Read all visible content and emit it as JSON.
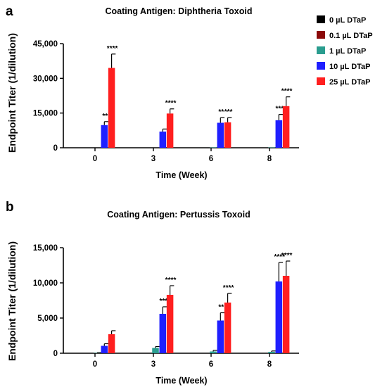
{
  "legend": [
    {
      "label": "0 µL DTaP",
      "color": "#000000"
    },
    {
      "label": "0.1 µL DTaP",
      "color": "#8b0a0a"
    },
    {
      "label": "1 µL DTaP",
      "color": "#2a9d8f"
    },
    {
      "label": "10 µL DTaP",
      "color": "#1f1fff"
    },
    {
      "label": "25 µL DTaP",
      "color": "#ff1f1f"
    }
  ],
  "chart_data": [
    {
      "panel": "a",
      "type": "bar",
      "title": "Coating Antigen: Diphtheria Toxoid",
      "xlabel": "Time (Week)",
      "ylabel": "Endpoint Titer (1/dilution)",
      "ylim": [
        0,
        45000
      ],
      "yticks": [
        0,
        15000,
        30000,
        45000
      ],
      "ytick_labels": [
        "0",
        "15,000",
        "30,000",
        "45,000"
      ],
      "categories": [
        "0",
        "3",
        "6",
        "8"
      ],
      "series": [
        {
          "name": "0 µL DTaP",
          "values": [
            0,
            0,
            0,
            0
          ],
          "errors": [
            0,
            0,
            0,
            0
          ],
          "sig": [
            "",
            "",
            "",
            ""
          ]
        },
        {
          "name": "0.1 µL DTaP",
          "values": [
            0,
            0,
            0,
            0
          ],
          "errors": [
            0,
            0,
            0,
            0
          ],
          "sig": [
            "",
            "",
            "",
            ""
          ]
        },
        {
          "name": "1 µL DTaP",
          "values": [
            0,
            0,
            150,
            150
          ],
          "errors": [
            0,
            0,
            0,
            0
          ],
          "sig": [
            "",
            "",
            "",
            ""
          ]
        },
        {
          "name": "10 µL DTaP",
          "values": [
            9800,
            7000,
            10800,
            11900
          ],
          "errors": [
            1500,
            1100,
            2200,
            2500
          ],
          "sig": [
            "**",
            "",
            "**",
            "***"
          ]
        },
        {
          "name": "25 µL DTaP",
          "values": [
            34500,
            14800,
            11000,
            18000
          ],
          "errors": [
            6000,
            2000,
            2000,
            4000
          ],
          "sig": [
            "****",
            "****",
            "***",
            "****"
          ]
        }
      ],
      "grid": false,
      "legend_position": "right"
    },
    {
      "panel": "b",
      "type": "bar",
      "title": "Coating Antigen: Pertussis Toxoid",
      "xlabel": "Time (Week)",
      "ylabel": "Endpoint Titer (1/dilution)",
      "ylim": [
        0,
        15000
      ],
      "yticks": [
        0,
        5000,
        10000,
        15000
      ],
      "ytick_labels": [
        "0",
        "5,000",
        "10,000",
        "15,000"
      ],
      "categories": [
        "0",
        "3",
        "6",
        "8"
      ],
      "series": [
        {
          "name": "0 µL DTaP",
          "values": [
            0,
            0,
            0,
            0
          ],
          "errors": [
            0,
            0,
            0,
            0
          ],
          "sig": [
            "",
            "",
            "",
            ""
          ]
        },
        {
          "name": "0.1 µL DTaP",
          "values": [
            0,
            0,
            0,
            0
          ],
          "errors": [
            0,
            0,
            0,
            0
          ],
          "sig": [
            "",
            "",
            "",
            ""
          ]
        },
        {
          "name": "1 µL DTaP",
          "values": [
            50,
            750,
            250,
            200
          ],
          "errors": [
            30,
            200,
            150,
            120
          ],
          "sig": [
            "",
            "",
            "",
            ""
          ]
        },
        {
          "name": "10 µL DTaP",
          "values": [
            1050,
            5600,
            4650,
            10200
          ],
          "errors": [
            300,
            1000,
            1100,
            2700
          ],
          "sig": [
            "",
            "***",
            "**",
            "****"
          ]
        },
        {
          "name": "25 µL DTaP",
          "values": [
            2700,
            8300,
            7200,
            11000
          ],
          "errors": [
            500,
            1300,
            1300,
            2100
          ],
          "sig": [
            "",
            "****",
            "****",
            "****"
          ]
        }
      ],
      "grid": false,
      "legend_position": "right"
    }
  ]
}
